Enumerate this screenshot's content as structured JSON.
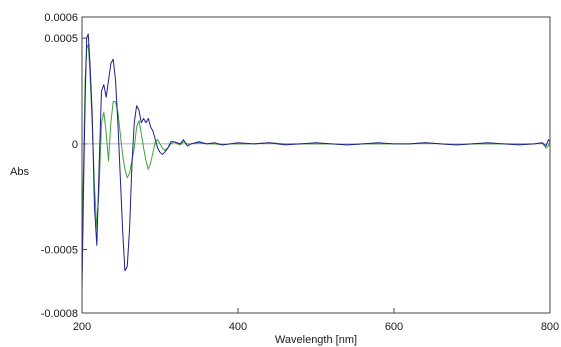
{
  "chart_data": {
    "type": "line",
    "title": "",
    "xlabel": "Wavelength [nm]",
    "ylabel": "Abs",
    "xlim": [
      200,
      800
    ],
    "ylim": [
      -0.0008,
      0.0006
    ],
    "x_ticks": [
      200,
      400,
      600,
      800
    ],
    "x_tick_labels": [
      "200",
      "400",
      "600",
      "800"
    ],
    "y_ticks": [
      0.0006,
      0.0005,
      0,
      -0.0005,
      -0.0008
    ],
    "y_tick_labels": [
      "0.0006",
      "0.0005",
      "0",
      "-0.0005",
      "-0.0008"
    ],
    "grid": false,
    "zero_line": true,
    "series": [
      {
        "color": "#1f1f8f",
        "x": [
          200,
          202,
          204,
          206,
          208,
          210,
          213,
          216,
          219,
          222,
          225,
          228,
          231,
          234,
          237,
          240,
          243,
          246,
          249,
          252,
          255,
          258,
          261,
          264,
          267,
          270,
          273,
          276,
          279,
          282,
          285,
          288,
          291,
          294,
          297,
          300,
          303,
          306,
          310,
          314,
          318,
          322,
          326,
          330,
          335,
          340,
          350,
          360,
          370,
          380,
          390,
          400,
          420,
          440,
          460,
          480,
          500,
          520,
          540,
          560,
          580,
          600,
          620,
          640,
          660,
          680,
          700,
          720,
          740,
          760,
          780,
          790,
          795,
          798,
          800
        ],
        "y": [
          -0.0007,
          -0.0002,
          0.0002,
          0.0005,
          0.00052,
          0.0004,
          0.00015,
          -0.0003,
          -0.00048,
          -0.0001,
          0.00025,
          0.00028,
          0.00022,
          0.0003,
          0.00038,
          0.0004,
          0.0003,
          0.0001,
          -0.00015,
          -0.0004,
          -0.0006,
          -0.00058,
          -0.0004,
          -0.0001,
          0.0001,
          0.00018,
          0.00016,
          0.0001,
          0.00012,
          0.0001,
          0.00012,
          8e-05,
          6e-05,
          2e-05,
          -2e-05,
          -4e-05,
          -5e-05,
          -4e-05,
          -2e-05,
          1e-05,
          1e-05,
          5e-06,
          0,
          2e-05,
          -1e-05,
          0,
          1e-05,
          0,
          5e-06,
          -5e-06,
          0,
          5e-06,
          0,
          5e-06,
          -5e-06,
          0,
          5e-06,
          0,
          -5e-06,
          0,
          5e-06,
          0,
          0,
          5e-06,
          0,
          -5e-06,
          0,
          5e-06,
          0,
          -5e-06,
          0,
          5e-06,
          -1e-05,
          2e-05,
          1e-05
        ]
      },
      {
        "color": "#3aa53a",
        "x": [
          200,
          202,
          204,
          206,
          208,
          210,
          213,
          216,
          219,
          222,
          225,
          228,
          231,
          234,
          237,
          240,
          243,
          246,
          249,
          252,
          255,
          258,
          261,
          264,
          267,
          270,
          273,
          276,
          279,
          282,
          285,
          288,
          291,
          294,
          297,
          300,
          303,
          306,
          310,
          314,
          318,
          322,
          326,
          330,
          335,
          340,
          350,
          360,
          370,
          380,
          390,
          400,
          420,
          440,
          460,
          480,
          500,
          520,
          540,
          560,
          580,
          600,
          620,
          640,
          660,
          680,
          700,
          720,
          740,
          760,
          780,
          790,
          795,
          798,
          800
        ],
        "y": [
          -0.00045,
          -0.0001,
          0.0003,
          0.00045,
          0.00047,
          0.00035,
          0.0001,
          -0.0002,
          -0.0004,
          -0.0002,
          0.0001,
          0.00015,
          5e-05,
          -8e-05,
          0.0001,
          0.0002,
          0.0002,
          0.00015,
          5e-05,
          -5e-05,
          -0.00012,
          -0.00016,
          -0.00014,
          -8e-05,
          -2e-05,
          8e-05,
          0.00011,
          5e-05,
          -2e-05,
          -8e-05,
          -0.00012,
          -9e-05,
          -4e-05,
          1e-05,
          2e-05,
          0,
          -2e-05,
          -3e-05,
          -2e-05,
          0,
          1e-05,
          0,
          -5e-06,
          1e-05,
          0,
          0,
          5e-06,
          0,
          0,
          -5e-06,
          0,
          0,
          0,
          5e-06,
          0,
          0,
          0,
          0,
          -5e-06,
          0,
          0,
          0,
          0,
          5e-06,
          0,
          -5e-06,
          0,
          0,
          0,
          0,
          0,
          5e-06,
          -2e-05,
          -1e-05,
          1e-05
        ]
      }
    ]
  }
}
